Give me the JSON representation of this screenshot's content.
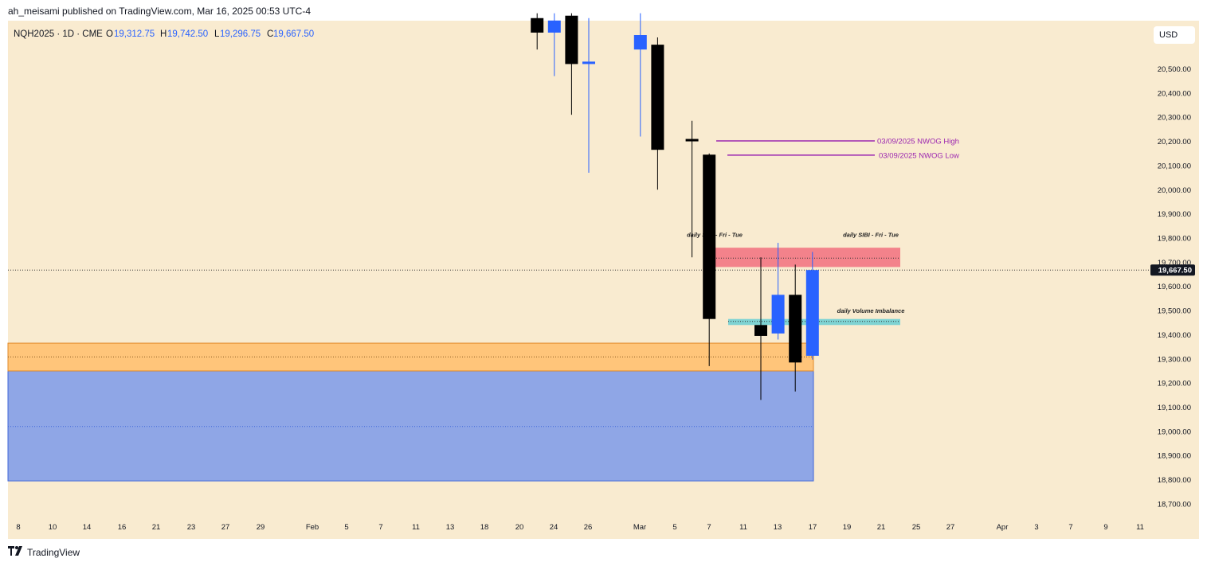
{
  "header": {
    "text": "ah_meisami published on TradingView.com, Mar 16, 2025 00:53 UTC-4"
  },
  "footer": {
    "brand": "TradingView",
    "logo": "tradingview-logo"
  },
  "currency": "USD",
  "legend": {
    "symbol": "NQH2025 · 1D · CME",
    "o_label": "O",
    "o_value": "19,312.75",
    "h_label": "H",
    "h_value": "19,742.50",
    "l_label": "L",
    "l_value": "19,296.75",
    "c_label": "C",
    "c_value": "19,667.50"
  },
  "colors": {
    "background": "#f9ebd0",
    "up": "#2962ff",
    "down": "#000000",
    "nwog": "#9c27b0",
    "sibi": "#f2707f",
    "volume_imbalance": "#7fd3d3",
    "orange_zone": "#ffc57a",
    "blue_zone": "#8fa6e6"
  },
  "chart_data": {
    "type": "candlestick",
    "symbol": "NQH2025",
    "interval": "1D",
    "ylim": [
      18620,
      20720
    ],
    "y_ticks": [
      18700,
      18800,
      18900,
      19000,
      19100,
      19200,
      19300,
      19400,
      19500,
      19600,
      19700,
      19800,
      19900,
      20000,
      20100,
      20200,
      20300,
      20400,
      20500
    ],
    "y_tick_labels": [
      "18,700.00",
      "18,800.00",
      "18,900.00",
      "19,000.00",
      "19,100.00",
      "19,200.00",
      "19,300.00",
      "19,400.00",
      "19,500.00",
      "19,600.00",
      "19,700.00",
      "19,800.00",
      "19,900.00",
      "20,000.00",
      "20,100.00",
      "20,200.00",
      "20,300.00",
      "20,400.00",
      "20,500.00"
    ],
    "x_ticks": [
      "8",
      "10",
      "14",
      "16",
      "21",
      "23",
      "27",
      "29",
      "Feb",
      "5",
      "7",
      "11",
      "13",
      "18",
      "20",
      "24",
      "26",
      "Mar",
      "5",
      "7",
      "11",
      "13",
      "17",
      "19",
      "21",
      "25",
      "27",
      "Apr",
      "3",
      "7",
      "9",
      "11"
    ],
    "last_price": 19667.5,
    "last_price_label": "19,667.50",
    "candles": [
      {
        "date": "2025-02-25",
        "open": 20710,
        "high": 20730,
        "low": 20580,
        "close": 20650
      },
      {
        "date": "2025-02-26",
        "open": 20650,
        "high": 20730,
        "low": 20470,
        "close": 20700
      },
      {
        "date": "2025-02-27",
        "open": 20720,
        "high": 20730,
        "low": 20310,
        "close": 20520
      },
      {
        "date": "2025-02-28",
        "open": 20520,
        "high": 20710,
        "low": 20070,
        "close": 20530
      },
      {
        "date": "2025-03-03",
        "open": 20580,
        "high": 20730,
        "low": 20220,
        "close": 20640
      },
      {
        "date": "2025-03-04",
        "open": 20600,
        "high": 20630,
        "low": 20000,
        "close": 20165
      },
      {
        "date": "2025-03-06",
        "open": 20210,
        "high": 20285,
        "low": 19720,
        "close": 20200
      },
      {
        "date": "2025-03-07",
        "open": 20145,
        "high": 20150,
        "low": 19270,
        "close": 19465
      },
      {
        "date": "2025-03-10",
        "open": 19440,
        "high": 19720,
        "low": 19130,
        "close": 19395
      },
      {
        "date": "2025-03-11",
        "open": 19405,
        "high": 19780,
        "low": 19380,
        "close": 19565
      },
      {
        "date": "2025-03-12",
        "open": 19565,
        "high": 19690,
        "low": 19165,
        "close": 19285
      },
      {
        "date": "2025-03-13",
        "open": 19312.75,
        "high": 19742.5,
        "low": 19296.75,
        "close": 19667.5
      }
    ],
    "levels": [
      {
        "name": "03/09/2025 NWOG High",
        "price": 20202
      },
      {
        "name": "03/09/2025 NWOG Low",
        "price": 20143
      }
    ],
    "zones": [
      {
        "name": "daily SIBI - Fri - Tue",
        "top": 19760,
        "bottom": 19680,
        "mid": 19717
      },
      {
        "name": "daily Volume Imbalance",
        "top": 19465,
        "bottom": 19440,
        "mid": 19455
      },
      {
        "name": "orange zone",
        "top": 19365,
        "bottom": 19250,
        "mid": 19308
      },
      {
        "name": "blue zone",
        "top": 19250,
        "bottom": 18795,
        "mid": 19020
      }
    ],
    "annotations": [
      "daily SIBI - Fri - Tue",
      "daily SIBI - Fri - Tue",
      "daily Volume Imbalance"
    ]
  }
}
